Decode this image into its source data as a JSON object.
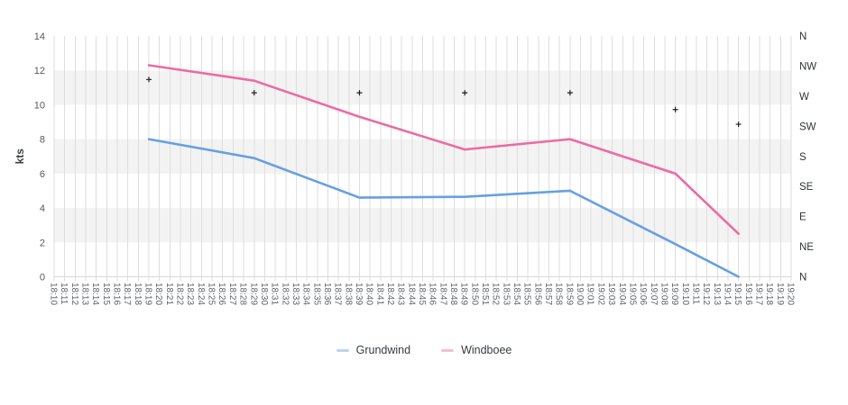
{
  "chart_data": {
    "type": "line",
    "title": "",
    "ylabel": "kts",
    "y_axis": {
      "min": 0,
      "max": 14,
      "ticks": [
        14,
        12,
        10,
        8,
        6,
        4,
        2,
        0
      ]
    },
    "y2_axis": {
      "min": 0,
      "max": 360,
      "labels": [
        "N",
        "NW",
        "W",
        "SW",
        "S",
        "SE",
        "E",
        "NE",
        "N"
      ]
    },
    "x_categories": [
      "18:10",
      "18:11",
      "18:12",
      "18:13",
      "18:14",
      "18:15",
      "18:16",
      "18:17",
      "18:18",
      "18:19",
      "18:20",
      "18:21",
      "18:22",
      "18:23",
      "18:24",
      "18:25",
      "18:26",
      "18:27",
      "18:28",
      "18:29",
      "18:30",
      "18:31",
      "18:32",
      "18:33",
      "18:34",
      "18:35",
      "18:36",
      "18:37",
      "18:38",
      "18:39",
      "18:40",
      "18:41",
      "18:42",
      "18:43",
      "18:44",
      "18:45",
      "18:46",
      "18:47",
      "18:48",
      "18:49",
      "18:50",
      "18:51",
      "18:52",
      "18:53",
      "18:54",
      "18:55",
      "18:56",
      "18:57",
      "18:58",
      "18:59",
      "19:00",
      "19:01",
      "19:02",
      "19:03",
      "19:04",
      "19:05",
      "19:06",
      "19:07",
      "19:08",
      "19:09",
      "19:10",
      "19:11",
      "19:12",
      "19:13",
      "19:14",
      "19:15",
      "19:16",
      "19:17",
      "19:18",
      "19:19",
      "19:20"
    ],
    "series": [
      {
        "name": "Grundwind",
        "color": "#66a0e2",
        "points": [
          {
            "t": "18:19",
            "kts": 8.0
          },
          {
            "t": "18:29",
            "kts": 6.9
          },
          {
            "t": "18:39",
            "kts": 4.6
          },
          {
            "t": "18:49",
            "kts": 4.65
          },
          {
            "t": "18:59",
            "kts": 5.0
          },
          {
            "t": "19:09",
            "kts": 1.9
          },
          {
            "t": "19:15",
            "kts": 0.0
          }
        ]
      },
      {
        "name": "Windboee",
        "color": "#ee6aa1",
        "points": [
          {
            "t": "18:19",
            "kts": 12.3
          },
          {
            "t": "18:29",
            "kts": 11.4
          },
          {
            "t": "18:39",
            "kts": 9.3
          },
          {
            "t": "18:49",
            "kts": 7.4
          },
          {
            "t": "18:59",
            "kts": 8.0
          },
          {
            "t": "19:09",
            "kts": 6.0
          },
          {
            "t": "19:15",
            "kts": 2.5
          }
        ]
      }
    ],
    "direction_markers": {
      "color": "#1f1f1f",
      "points": [
        {
          "t": "18:19",
          "deg": 295
        },
        {
          "t": "18:29",
          "deg": 275
        },
        {
          "t": "18:39",
          "deg": 275
        },
        {
          "t": "18:49",
          "deg": 275
        },
        {
          "t": "18:59",
          "deg": 275
        },
        {
          "t": "19:09",
          "deg": 250
        },
        {
          "t": "19:15",
          "deg": 228
        }
      ]
    },
    "legend": [
      "Grundwind",
      "Windboee"
    ],
    "layout_hints": {
      "grid": "vertical-per-minute",
      "legend_position": "bottom",
      "row_bands": "alternating"
    },
    "colors": {
      "grid": "#dedede",
      "band": "#f3f3f3",
      "axis_line": "#d9d9d9"
    }
  }
}
